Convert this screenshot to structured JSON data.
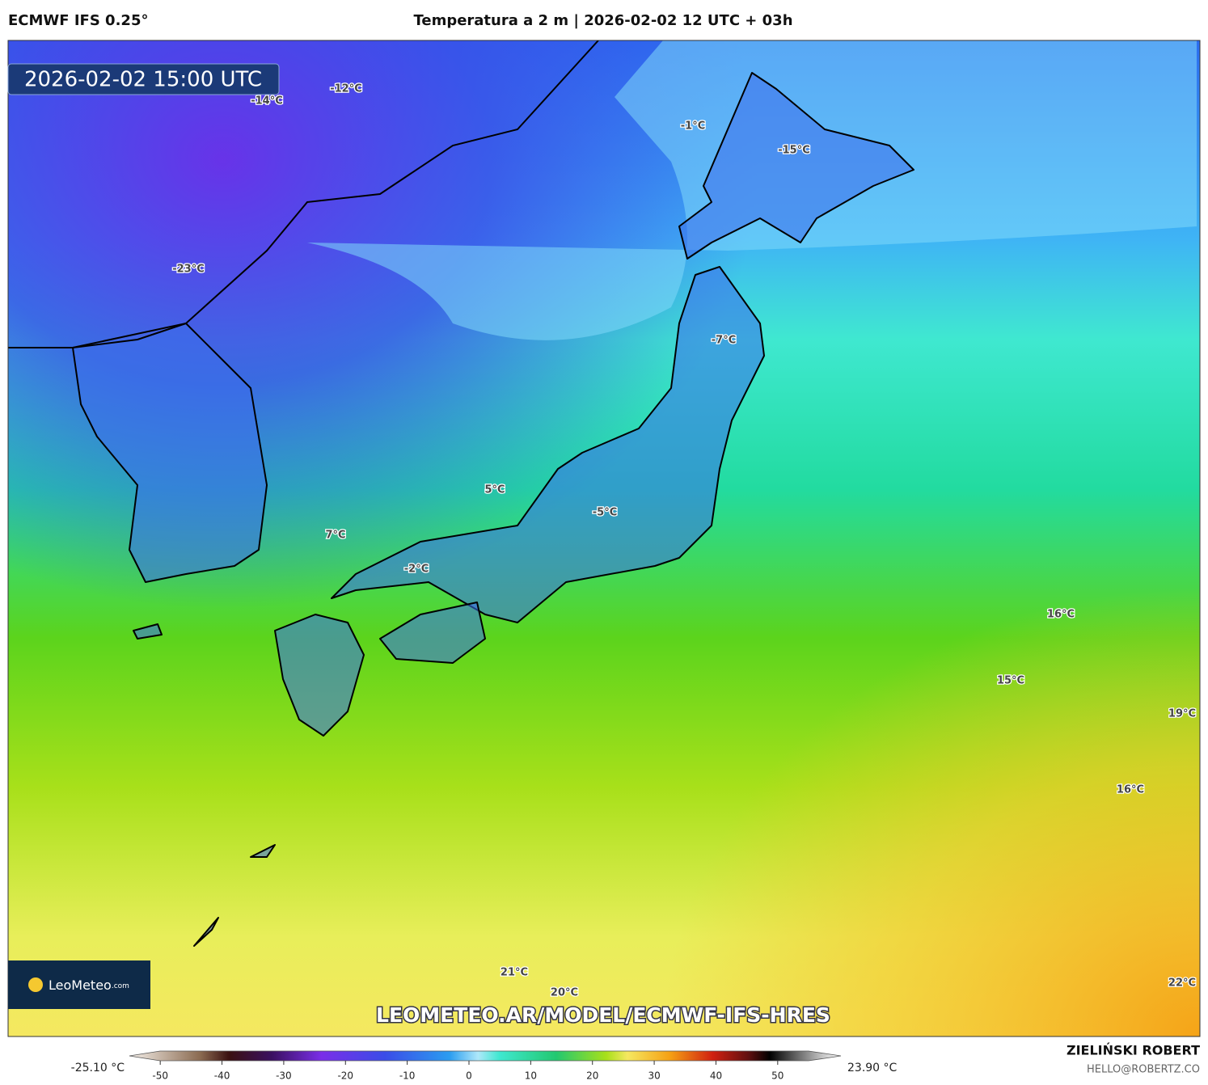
{
  "header": {
    "model": "ECMWF IFS 0.25°",
    "title": "Temperatura a 2 m | 2026-02-02 12 UTC + 03h"
  },
  "map": {
    "timestamp": "2026-02-02 15:00 UTC",
    "labels": [
      "-14°C",
      "-12°C",
      "-1°C",
      "-15°C",
      "-23°C",
      "-7°C",
      "5°C",
      "-5°C",
      "7°C",
      "-2°C",
      "16°C",
      "15°C",
      "19°C",
      "16°C",
      "21°C",
      "20°C",
      "22°C"
    ],
    "url": "LEOMETEO.AR/MODEL/ECMWF-IFS-HRES",
    "logo": {
      "name": "LeoMeteo",
      "suffix": ".com"
    }
  },
  "colorbar": {
    "min_label": "-25.10 °C",
    "max_label": "23.90 °C",
    "lim": [
      -55,
      55
    ],
    "ticks": [
      -50,
      -40,
      -30,
      -20,
      -10,
      0,
      10,
      20,
      30,
      40,
      50
    ]
  },
  "footer": {
    "author": "ZIELIŃSKI ROBERT",
    "email": "HELLO@ROBERTZ.CO"
  }
}
